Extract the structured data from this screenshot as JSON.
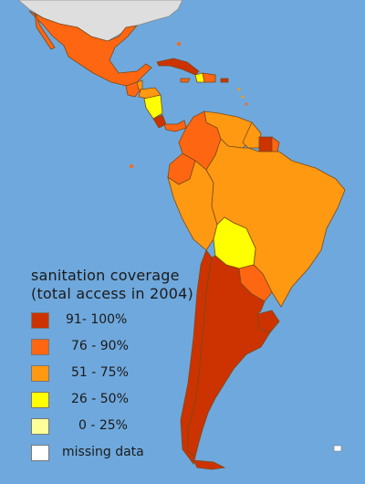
{
  "colors": {
    "ocean": "#6fa8dc",
    "north_america": "#dedede",
    "border": "#7a4a1a"
  },
  "legend": {
    "title_line1": "sanitation coverage",
    "title_line2": "(total access in 2004)",
    "items": [
      {
        "label": "91- 100%",
        "color": "#cc3300"
      },
      {
        "label": "76 - 90%",
        "color": "#ff6611"
      },
      {
        "label": "51 - 75%",
        "color": "#ff9911"
      },
      {
        "label": "26 - 50%",
        "color": "#ffff00"
      },
      {
        "label": "0 - 25%",
        "color": "#ffff99"
      },
      {
        "label": "missing data",
        "color": "#ffffff"
      }
    ]
  }
}
